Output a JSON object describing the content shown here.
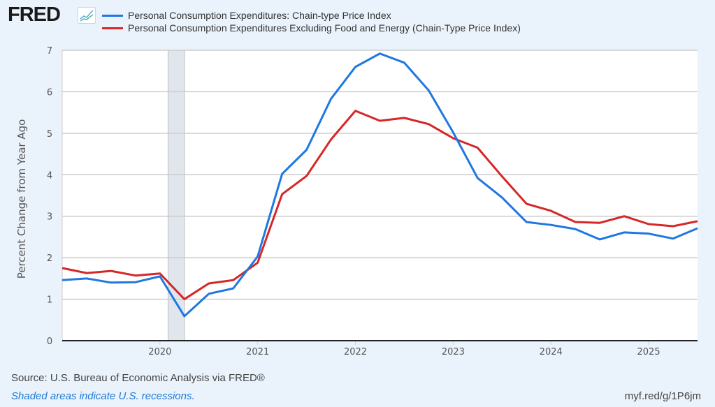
{
  "header": {
    "logo_text": "FRED",
    "logo_icon": "line-chart-icon"
  },
  "chart_data": {
    "type": "line",
    "title": "",
    "xlabel": "",
    "ylabel": "Percent Change from Year Ago",
    "ylim": [
      0,
      7
    ],
    "yticks": [
      "0",
      "1",
      "2",
      "3",
      "4",
      "5",
      "6",
      "7"
    ],
    "xlim": [
      2019.0,
      2025.5
    ],
    "xticks": [
      "2020",
      "2021",
      "2022",
      "2023",
      "2024",
      "2025"
    ],
    "grid": true,
    "legend_position": "top",
    "recessions": [
      {
        "start": 2020.083,
        "end": 2020.25
      }
    ],
    "x": [
      "2019-Q1",
      "2019-Q2",
      "2019-Q3",
      "2019-Q4",
      "2020-Q1",
      "2020-Q2",
      "2020-Q3",
      "2020-Q4",
      "2021-Q1",
      "2021-Q2",
      "2021-Q3",
      "2021-Q4",
      "2022-Q1",
      "2022-Q2",
      "2022-Q3",
      "2022-Q4",
      "2023-Q1",
      "2023-Q2",
      "2023-Q3",
      "2023-Q4",
      "2024-Q1",
      "2024-Q2",
      "2024-Q3",
      "2024-Q4",
      "2025-Q1",
      "2025-Q2",
      "2025-Q3"
    ],
    "series": [
      {
        "name": "Personal Consumption Expenditures: Chain-type Price Index",
        "color": "#1f77e0",
        "values": [
          1.46,
          1.5,
          1.4,
          1.41,
          1.55,
          0.59,
          1.13,
          1.26,
          2.03,
          4.02,
          4.6,
          5.83,
          6.6,
          6.92,
          6.7,
          6.03,
          5.02,
          3.92,
          3.45,
          2.86,
          2.79,
          2.69,
          2.44,
          2.61,
          2.58,
          2.46,
          2.71
        ]
      },
      {
        "name": "Personal Consumption Expenditures Excluding Food and Energy (Chain-Type Price Index)",
        "color": "#d62728",
        "values": [
          1.75,
          1.63,
          1.68,
          1.57,
          1.62,
          1.0,
          1.38,
          1.46,
          1.88,
          3.53,
          3.97,
          4.85,
          5.54,
          5.3,
          5.37,
          5.22,
          4.88,
          4.65,
          3.96,
          3.3,
          3.13,
          2.86,
          2.84,
          3.0,
          2.81,
          2.76,
          2.88
        ]
      }
    ]
  },
  "footer": {
    "source": "Source: U.S. Bureau of Economic Analysis via FRED®",
    "note": "Shaded areas indicate U.S. recessions.",
    "url": "myf.red/g/1P6jm"
  }
}
